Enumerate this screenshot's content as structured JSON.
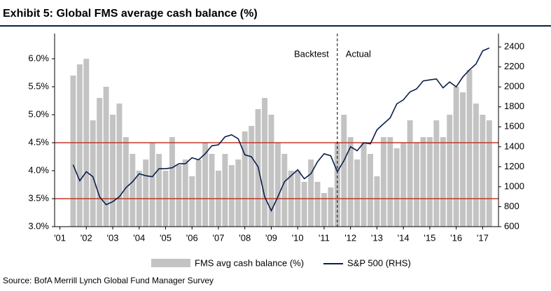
{
  "chart_data": {
    "type": "combo",
    "title": "Exhibit 5: Global FMS average cash balance (%)",
    "source": "Source: BofA Merrill Lynch Global Fund Manager Survey",
    "annotations": [
      "Backtest",
      "Actual"
    ],
    "vlines": [
      2011.5
    ],
    "hlines": [
      4.5,
      3.5
    ],
    "hline_color": "#c0392b",
    "x": [
      2001.5,
      2001.75,
      2002,
      2002.25,
      2002.5,
      2002.75,
      2003,
      2003.25,
      2003.5,
      2003.75,
      2004,
      2004.25,
      2004.5,
      2004.75,
      2005,
      2005.25,
      2005.5,
      2005.75,
      2006,
      2006.25,
      2006.5,
      2006.75,
      2007,
      2007.25,
      2007.5,
      2007.75,
      2008,
      2008.25,
      2008.5,
      2008.75,
      2009,
      2009.25,
      2009.5,
      2009.75,
      2010,
      2010.25,
      2010.5,
      2010.75,
      2011,
      2011.25,
      2011.5,
      2011.75,
      2012,
      2012.25,
      2012.5,
      2012.75,
      2013,
      2013.25,
      2013.5,
      2013.75,
      2014,
      2014.25,
      2014.5,
      2014.75,
      2015,
      2015.25,
      2015.5,
      2015.75,
      2016,
      2016.25,
      2016.5,
      2016.75,
      2017,
      2017.25
    ],
    "series": [
      {
        "name": "FMS avg cash balance (%)",
        "type": "bar",
        "color": "#c3c3c3",
        "values": [
          5.7,
          5.9,
          6.0,
          4.9,
          5.3,
          5.5,
          5.0,
          5.2,
          4.6,
          4.3,
          4.0,
          4.2,
          4.5,
          4.3,
          4.0,
          4.6,
          4.1,
          4.2,
          3.9,
          4.2,
          4.5,
          4.3,
          4.0,
          4.3,
          4.1,
          4.2,
          4.7,
          4.8,
          5.1,
          5.3,
          5.0,
          4.5,
          4.3,
          4.0,
          4.0,
          3.8,
          4.2,
          3.8,
          3.6,
          3.7,
          4.5,
          5.0,
          4.6,
          4.2,
          4.5,
          4.3,
          3.9,
          4.6,
          4.6,
          4.4,
          4.5,
          4.9,
          4.5,
          4.6,
          4.6,
          4.9,
          4.6,
          5.0,
          5.5,
          5.4,
          5.8,
          5.2,
          5.0,
          4.9
        ]
      },
      {
        "name": "S&P 500 (RHS)",
        "type": "line",
        "axis": "y2",
        "color": "#0b1f4b",
        "values": [
          1220,
          1060,
          1150,
          1100,
          900,
          820,
          850,
          900,
          990,
          1050,
          1130,
          1110,
          1100,
          1180,
          1180,
          1190,
          1230,
          1230,
          1290,
          1270,
          1330,
          1410,
          1420,
          1500,
          1520,
          1480,
          1320,
          1300,
          1200,
          900,
          760,
          900,
          1050,
          1110,
          1170,
          1080,
          1130,
          1250,
          1330,
          1310,
          1150,
          1260,
          1400,
          1360,
          1440,
          1430,
          1570,
          1630,
          1690,
          1830,
          1870,
          1950,
          1980,
          2060,
          2070,
          2080,
          1990,
          2050,
          2000,
          2100,
          2170,
          2230,
          2360,
          2390
        ]
      }
    ],
    "xlim": [
      2000.8,
      2017.6
    ],
    "xticks": [
      {
        "value": 2001,
        "label": "'01"
      },
      {
        "value": 2002,
        "label": "'02"
      },
      {
        "value": 2003,
        "label": "'03"
      },
      {
        "value": 2004,
        "label": "'04"
      },
      {
        "value": 2005,
        "label": "'05"
      },
      {
        "value": 2006,
        "label": "'06"
      },
      {
        "value": 2007,
        "label": "'07"
      },
      {
        "value": 2008,
        "label": "'08"
      },
      {
        "value": 2009,
        "label": "'09"
      },
      {
        "value": 2010,
        "label": "'10"
      },
      {
        "value": 2011,
        "label": "'11"
      },
      {
        "value": 2012,
        "label": "'12"
      },
      {
        "value": 2013,
        "label": "'13"
      },
      {
        "value": 2014,
        "label": "'14"
      },
      {
        "value": 2015,
        "label": "'15"
      },
      {
        "value": 2016,
        "label": "'16"
      },
      {
        "value": 2017,
        "label": "'17"
      }
    ],
    "ylim": [
      3.0,
      6.3
    ],
    "yticks": [
      {
        "value": 3.0,
        "label": "3.0%"
      },
      {
        "value": 3.5,
        "label": "3.5%"
      },
      {
        "value": 4.0,
        "label": "4.0%"
      },
      {
        "value": 4.5,
        "label": "4.5%"
      },
      {
        "value": 5.0,
        "label": "5.0%"
      },
      {
        "value": 5.5,
        "label": "5.5%"
      },
      {
        "value": 6.0,
        "label": "6.0%"
      }
    ],
    "y2lim": [
      600,
      2450
    ],
    "y2ticks": [
      600,
      800,
      1000,
      1200,
      1400,
      1600,
      1800,
      2000,
      2200,
      2400
    ]
  }
}
